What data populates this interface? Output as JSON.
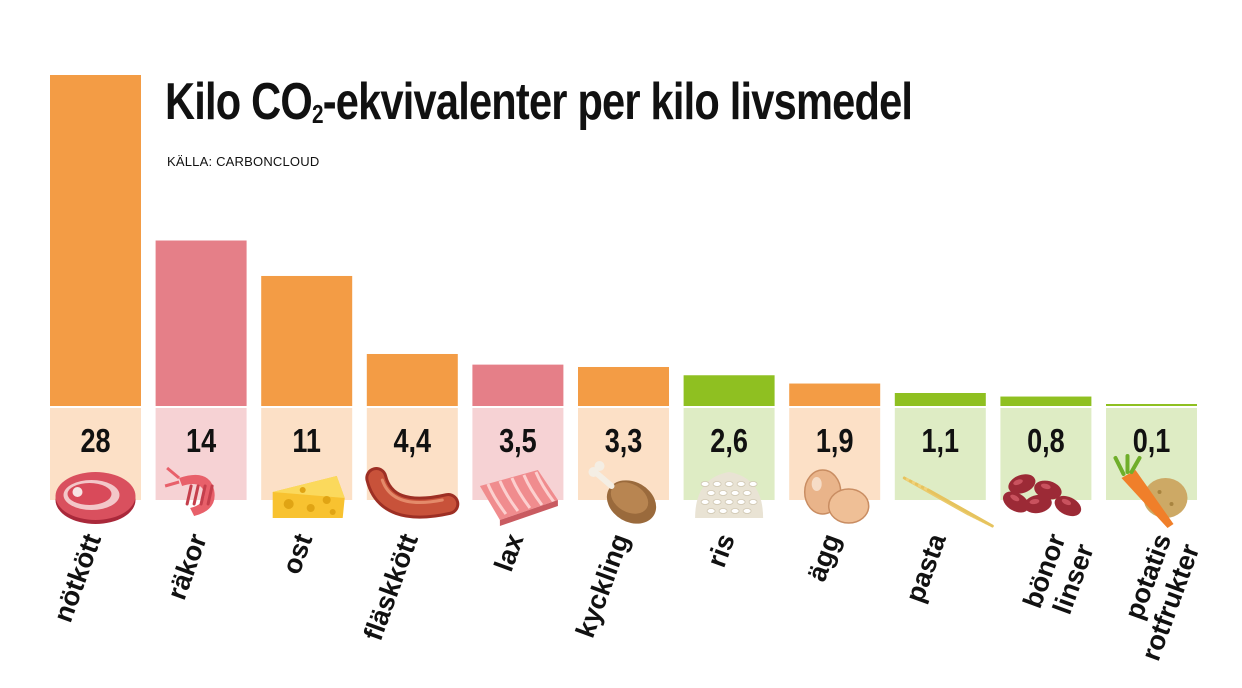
{
  "title_pre": "Kilo CO",
  "title_sub": "2",
  "title_post": "-ekvivalenter per kilo livsmedel",
  "source": "KÄLLA: CARBONCLOUD",
  "colors": {
    "meat_orange": "#f39c45",
    "seafood_pink": "#e57f88",
    "plant_green": "#8fc021",
    "box_orange": "#fce0c6",
    "box_pink": "#f6d2d4",
    "box_green": "#deecc4"
  },
  "chart_data": {
    "type": "bar",
    "title": "Kilo CO2-ekvivalenter per kilo livsmedel",
    "xlabel": "",
    "ylabel": "",
    "ylim": [
      0,
      28
    ],
    "grid": false,
    "legend": "none",
    "categories": [
      "nötkött",
      "räkor",
      "ost",
      "fläskkött",
      "lax",
      "kyckling",
      "ris",
      "ägg",
      "pasta",
      "bönor linser",
      "potatis rotfrukter"
    ],
    "category_lines": [
      [
        "nötkött"
      ],
      [
        "räkor"
      ],
      [
        "ost"
      ],
      [
        "fläskkött"
      ],
      [
        "lax"
      ],
      [
        "kyckling"
      ],
      [
        "ris"
      ],
      [
        "ägg"
      ],
      [
        "pasta"
      ],
      [
        "bönor",
        "linser"
      ],
      [
        "potatis",
        "rotfrukter"
      ]
    ],
    "values": [
      28,
      14,
      11,
      4.4,
      3.5,
      3.3,
      2.6,
      1.9,
      1.1,
      0.8,
      0.1
    ],
    "value_labels": [
      "28",
      "14",
      "11",
      "4,4",
      "3,5",
      "3,3",
      "2,6",
      "1,9",
      "1,1",
      "0,8",
      "0,1"
    ],
    "groups": [
      "orange",
      "pink",
      "orange",
      "orange",
      "pink",
      "orange",
      "green",
      "orange",
      "green",
      "green",
      "green"
    ],
    "icons": [
      "steak-icon",
      "shrimp-icon",
      "cheese-icon",
      "sausage-icon",
      "salmon-icon",
      "chicken-leg-icon",
      "rice-icon",
      "eggs-icon",
      "pasta-icon",
      "beans-icon",
      "carrot-potato-icon"
    ]
  }
}
